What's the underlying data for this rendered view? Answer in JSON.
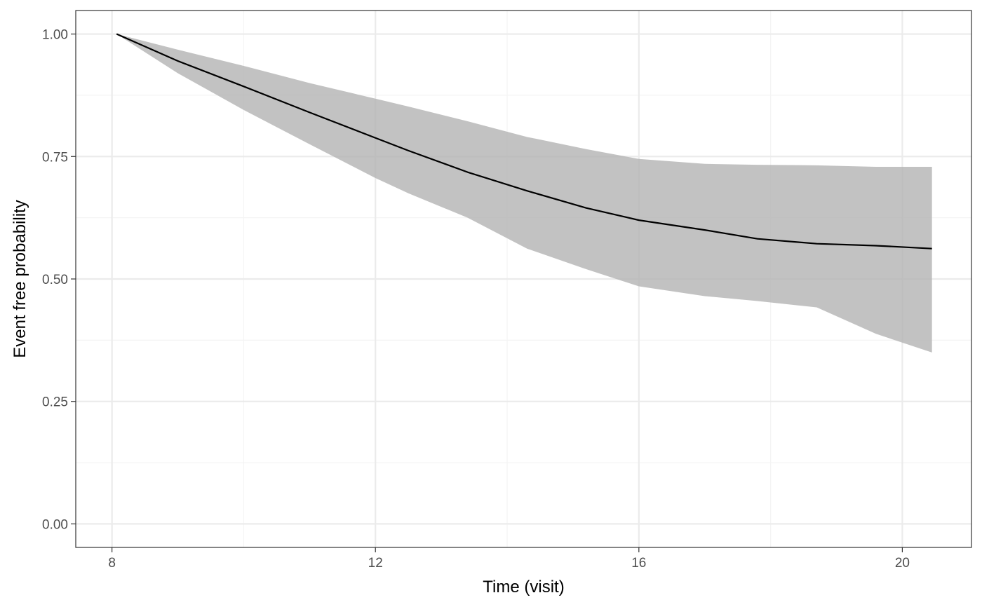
{
  "chart_data": {
    "type": "line",
    "title": "",
    "xlabel": "Time (visit)",
    "ylabel": "Event free probability",
    "xlim": [
      7.45,
      21.05
    ],
    "ylim": [
      -0.048,
      1.048
    ],
    "x_ticks": [
      8,
      12,
      16,
      20
    ],
    "x_tick_labels": [
      "8",
      "12",
      "16",
      "20"
    ],
    "y_ticks": [
      0,
      0.25,
      0.5,
      0.75,
      1
    ],
    "y_tick_labels": [
      "0.00",
      "0.25",
      "0.50",
      "0.75",
      "1.00"
    ],
    "x_minor_ticks": [
      10,
      14,
      18
    ],
    "y_minor_ticks": [
      0.125,
      0.375,
      0.625,
      0.875
    ],
    "grid": true,
    "legend": "none",
    "series": [
      {
        "x": [
          8.07,
          9.0,
          10.0,
          11.0,
          12.0,
          12.5,
          13.4,
          14.3,
          15.2,
          16.0,
          17.0,
          17.8,
          18.7,
          19.6,
          20.45
        ],
        "y": [
          1.0,
          0.945,
          0.893,
          0.84,
          0.788,
          0.762,
          0.718,
          0.68,
          0.645,
          0.62,
          0.6,
          0.582,
          0.572,
          0.568,
          0.562
        ],
        "lower": [
          1.0,
          0.92,
          0.845,
          0.775,
          0.706,
          0.675,
          0.625,
          0.562,
          0.52,
          0.485,
          0.465,
          0.455,
          0.442,
          0.388,
          0.35
        ],
        "upper": [
          1.0,
          0.968,
          0.935,
          0.9,
          0.868,
          0.852,
          0.822,
          0.79,
          0.765,
          0.745,
          0.735,
          0.733,
          0.732,
          0.729,
          0.729
        ]
      }
    ],
    "colors": {
      "line": "#000000",
      "ribbon": "#b3b3b3",
      "panel_border": "#333333",
      "grid_major": "#ebebeb",
      "grid_minor": "#f4f4f4",
      "tick_text": "#4d4d4d"
    }
  }
}
